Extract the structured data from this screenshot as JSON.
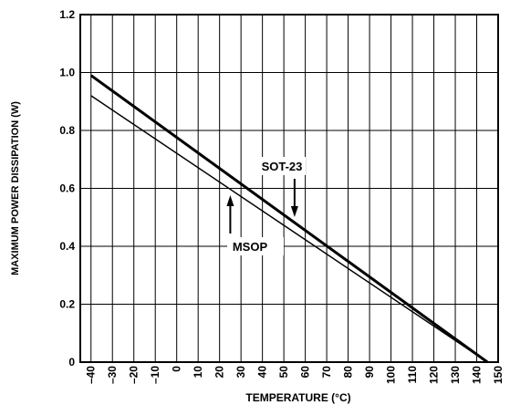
{
  "chart_data": {
    "type": "line",
    "xlabel": "TEMPERATURE (°C)",
    "ylabel": "MAXIMUM POWER DISSIPATION (W)",
    "xlim": [
      -45,
      150
    ],
    "ylim": [
      0,
      1.2
    ],
    "x_ticks": [
      -40,
      -30,
      -20,
      -10,
      0,
      10,
      20,
      30,
      40,
      50,
      60,
      70,
      80,
      90,
      100,
      110,
      120,
      130,
      140,
      150
    ],
    "x_tick_labels": [
      "–40",
      "–30",
      "–20",
      "–10",
      "0",
      "10",
      "20",
      "30",
      "40",
      "50",
      "60",
      "70",
      "80",
      "90",
      "100",
      "110",
      "120",
      "130",
      "140",
      "150"
    ],
    "y_ticks": [
      0,
      0.2,
      0.4,
      0.6,
      0.8,
      1.0,
      1.2
    ],
    "y_tick_labels": [
      "0",
      "0.2",
      "0.4",
      "0.6",
      "0.8",
      "1.0",
      "1.2"
    ],
    "grid": true,
    "series": [
      {
        "name": "SOT-23",
        "color": "#000000",
        "x": [
          -40,
          145
        ],
        "y": [
          0.99,
          0.0
        ]
      },
      {
        "name": "MSOP",
        "color": "#000000",
        "x": [
          -40,
          145
        ],
        "y": [
          0.92,
          0.0
        ]
      }
    ],
    "annotations": [
      {
        "text": "SOT-23",
        "arrow_to_x": 55,
        "arrow_direction": "down"
      },
      {
        "text": "MSOP",
        "arrow_to_x": 25,
        "arrow_direction": "up"
      }
    ]
  }
}
